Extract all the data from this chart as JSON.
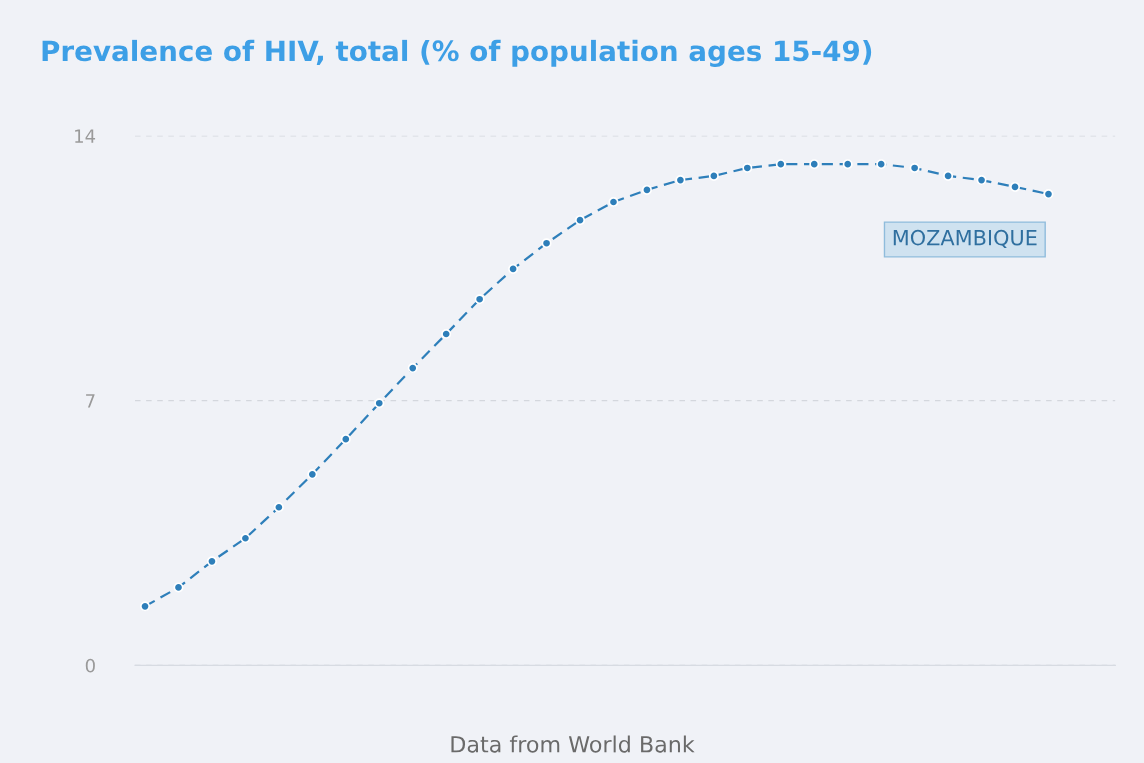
{
  "chart_data": {
    "type": "line",
    "title": "Prevalence of HIV, total (% of population ages 15-49)",
    "categories": [
      null,
      null,
      null,
      null,
      null,
      null,
      null,
      null,
      null,
      null,
      null,
      null,
      null,
      null,
      null,
      null,
      null,
      null,
      null,
      null,
      null,
      null,
      null,
      null,
      null,
      null,
      null,
      null
    ],
    "series": [
      {
        "name": "MOZAMBIQUE",
        "color": "#2e7fba",
        "values": [
          1.56,
          2.06,
          2.75,
          3.36,
          4.18,
          5.05,
          5.98,
          6.93,
          7.86,
          8.76,
          9.68,
          10.48,
          11.16,
          11.77,
          12.25,
          12.57,
          12.83,
          12.94,
          13.15,
          13.25,
          13.25,
          13.25,
          13.25,
          13.15,
          12.94,
          12.83,
          12.65,
          12.46
        ]
      }
    ],
    "ylim": [
      0,
      14
    ],
    "yticks": [
      0,
      7,
      14
    ],
    "tick_labels": "y",
    "grid": "y",
    "legend": false,
    "marker": "circle",
    "line_style": "dashed",
    "annotations": [
      "Data from World Bank"
    ]
  }
}
